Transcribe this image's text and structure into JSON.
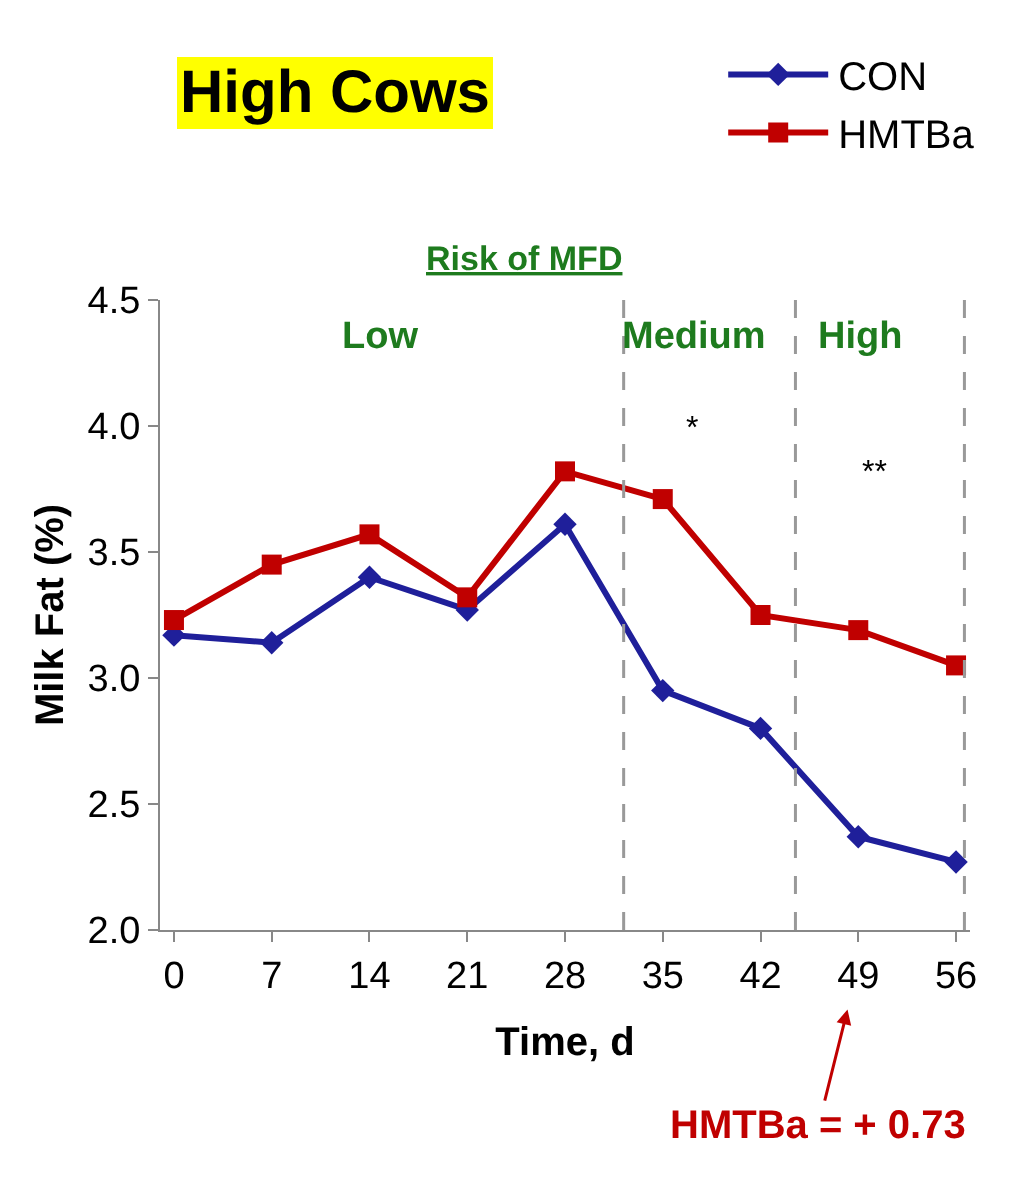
{
  "chart_data": {
    "type": "line",
    "title": "High Cows",
    "subtitle": "Risk of MFD",
    "xlabel": "Time, d",
    "ylabel": "Milk Fat (%)",
    "x": [
      0,
      7,
      14,
      21,
      28,
      35,
      42,
      49,
      56
    ],
    "series": [
      {
        "name": "CON",
        "color": "#1f1f9a",
        "marker": "diamond",
        "values": [
          3.17,
          3.14,
          3.4,
          3.27,
          3.61,
          2.95,
          2.8,
          2.37,
          2.27
        ]
      },
      {
        "name": "HMTBa",
        "color": "#c00000",
        "marker": "square",
        "values": [
          3.23,
          3.45,
          3.57,
          3.32,
          3.82,
          3.71,
          3.25,
          3.19,
          3.05
        ]
      }
    ],
    "xlim": [
      -1,
      57
    ],
    "xticks": [
      0,
      7,
      14,
      21,
      28,
      35,
      42,
      49,
      56
    ],
    "ylim": [
      2.0,
      4.5
    ],
    "yticks": [
      {
        "value": 2,
        "label": "2.0"
      },
      2.5,
      {
        "value": 3,
        "label": "3.0"
      },
      3.5,
      {
        "value": 4,
        "label": "4.0"
      },
      4.5
    ],
    "ref_lines": [
      {
        "axis": "x",
        "value": 32.2,
        "label": null,
        "color": "#999999",
        "line_style": "dashed"
      },
      {
        "axis": "x",
        "value": 44.5,
        "label": null,
        "color": "#999999",
        "line_style": "dashed"
      },
      {
        "axis": "x",
        "value": 56.6,
        "label": null,
        "color": "#999999",
        "line_style": "dashed"
      }
    ],
    "annotations": [
      "Low",
      "Medium",
      "High",
      "*",
      "**",
      "HMTBa = + 0.73"
    ],
    "legend": "top right",
    "line_style": "solid"
  }
}
